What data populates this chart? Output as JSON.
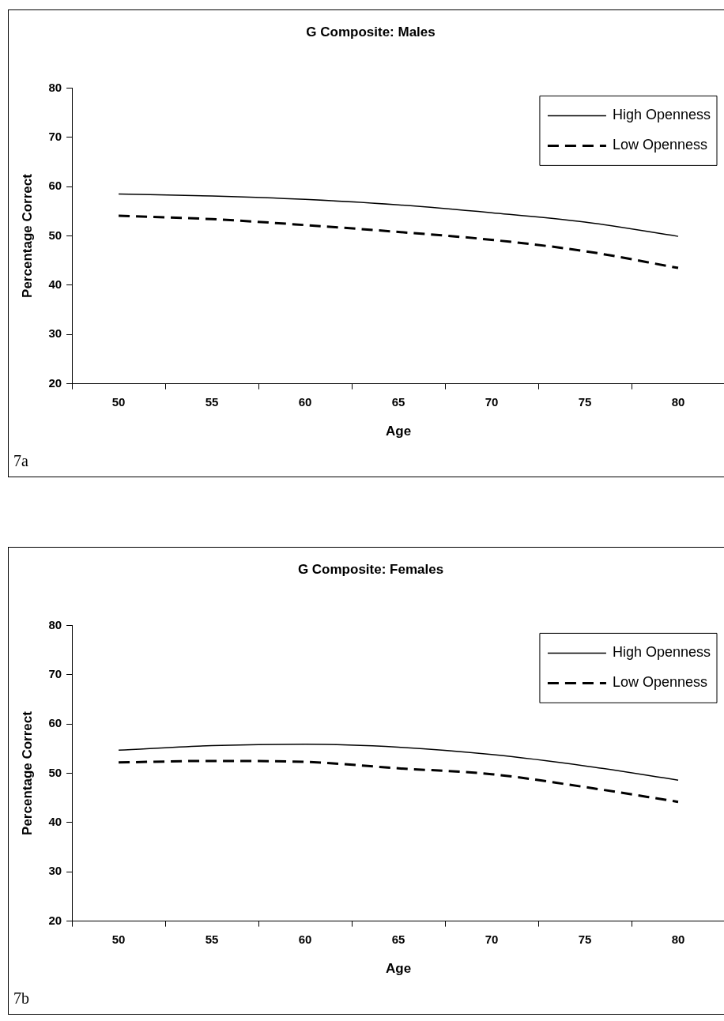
{
  "chart_data": [
    {
      "type": "line",
      "title": "G Composite: Males",
      "xlabel": "Age",
      "ylabel": "Percentage Correct",
      "categories": [
        "50",
        "55",
        "60",
        "65",
        "70",
        "75",
        "80"
      ],
      "series": [
        {
          "name": "High Openness",
          "color": "#000000",
          "line_style": "solid",
          "values": [
            58.5,
            58.1,
            57.4,
            56.3,
            54.7,
            52.8,
            49.9
          ]
        },
        {
          "name": "Low Openness",
          "color": "#000000",
          "line_style": "dashed",
          "values": [
            54.1,
            53.4,
            52.2,
            50.8,
            49.2,
            46.9,
            43.5
          ]
        }
      ],
      "ylim": [
        20,
        80
      ],
      "yticks": [
        20,
        30,
        40,
        50,
        60,
        70,
        80
      ],
      "grid": false,
      "legend": "top right",
      "marker": "none",
      "annotations": [
        "7a"
      ]
    },
    {
      "type": "line",
      "title": "G Composite: Females",
      "xlabel": "Age",
      "ylabel": "Percentage Correct",
      "categories": [
        "50",
        "55",
        "60",
        "65",
        "70",
        "75",
        "80"
      ],
      "series": [
        {
          "name": "High Openness",
          "color": "#000000",
          "line_style": "solid",
          "values": [
            54.7,
            55.6,
            55.9,
            55.3,
            53.8,
            51.5,
            48.6
          ]
        },
        {
          "name": "Low Openness",
          "color": "#000000",
          "line_style": "dashed",
          "values": [
            52.2,
            52.5,
            52.3,
            51.0,
            49.8,
            47.2,
            44.2
          ]
        }
      ],
      "ylim": [
        20,
        80
      ],
      "yticks": [
        20,
        30,
        40,
        50,
        60,
        70,
        80
      ],
      "grid": false,
      "legend": "top right",
      "marker": "none",
      "annotations": [
        "7b"
      ]
    }
  ]
}
